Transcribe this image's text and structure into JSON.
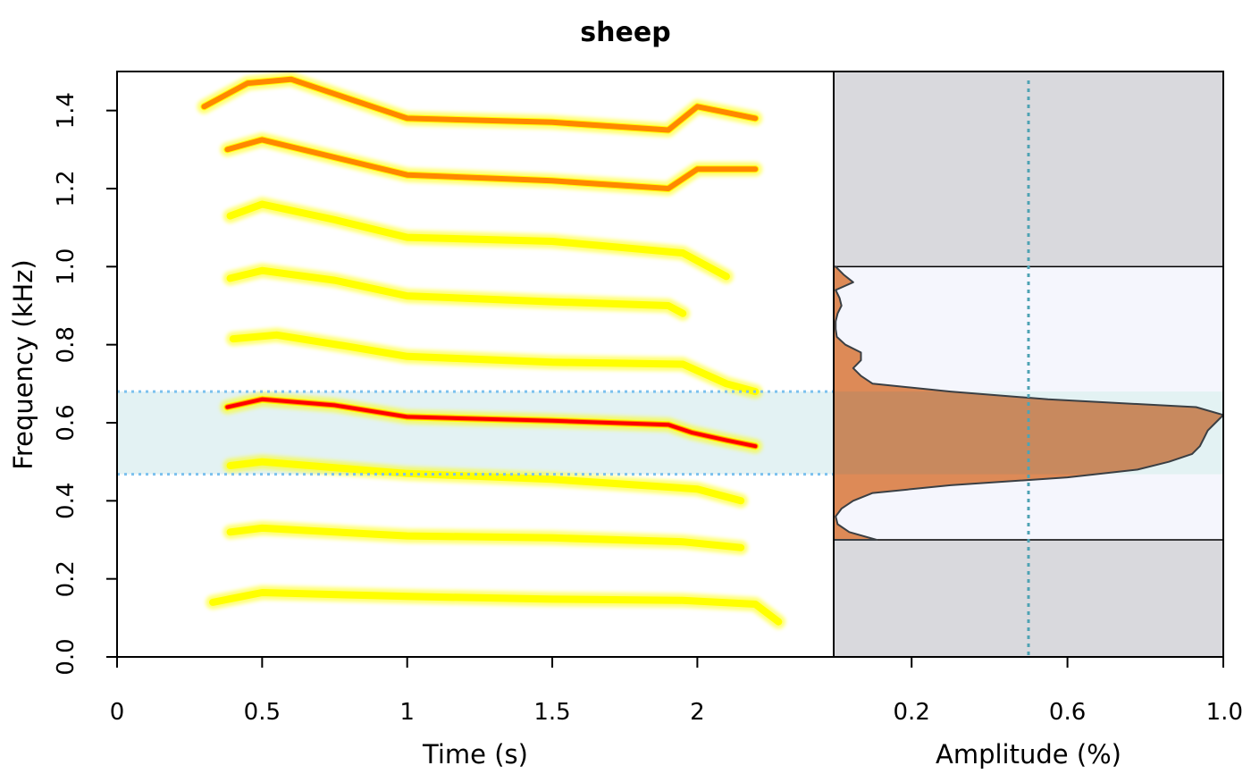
{
  "chart_data": {
    "title": "sheep",
    "type": "heatmap",
    "spectrogram": {
      "xlabel": "Time (s)",
      "ylabel": "Frequency (kHz)",
      "xlim": [
        0,
        2.47
      ],
      "ylim": [
        0,
        1.5
      ],
      "x_ticks": [
        0,
        0.5,
        1,
        1.5,
        2
      ],
      "x_tick_labels": [
        "0",
        "0.5",
        "1",
        "1.5",
        "2"
      ],
      "y_ticks": [
        0,
        0.2,
        0.4,
        0.6,
        0.8,
        1.0,
        1.2,
        1.4
      ],
      "y_tick_labels": [
        "0.0",
        "0.2",
        "0.4",
        "0.6",
        "0.8",
        "1.0",
        "1.2",
        "1.4"
      ],
      "colormap": [
        "#ffffff",
        "#ffff00",
        "#ff8800",
        "#ff0000"
      ],
      "highlight_band_khz": [
        0.468,
        0.68
      ],
      "highlight_band_color": "#e3f2f3",
      "highlight_line_color": "#7cc1ee",
      "harmonics": [
        {
          "name": "h1",
          "intensity": 0.3,
          "points": [
            [
              0.33,
              0.14
            ],
            [
              0.5,
              0.165
            ],
            [
              1.0,
              0.155
            ],
            [
              1.5,
              0.148
            ],
            [
              1.95,
              0.145
            ],
            [
              2.2,
              0.135
            ],
            [
              2.28,
              0.09
            ]
          ]
        },
        {
          "name": "h2",
          "intensity": 0.45,
          "points": [
            [
              0.39,
              0.32
            ],
            [
              0.5,
              0.33
            ],
            [
              1.0,
              0.31
            ],
            [
              1.5,
              0.305
            ],
            [
              1.95,
              0.295
            ],
            [
              2.15,
              0.28
            ]
          ]
        },
        {
          "name": "h3",
          "intensity": 0.5,
          "points": [
            [
              0.39,
              0.49
            ],
            [
              0.5,
              0.5
            ],
            [
              1.0,
              0.47
            ],
            [
              1.5,
              0.455
            ],
            [
              2.0,
              0.43
            ],
            [
              2.15,
              0.4
            ]
          ]
        },
        {
          "name": "h4",
          "intensity": 0.95,
          "points": [
            [
              0.38,
              0.64
            ],
            [
              0.5,
              0.66
            ],
            [
              0.75,
              0.645
            ],
            [
              1.0,
              0.615
            ],
            [
              1.5,
              0.605
            ],
            [
              1.9,
              0.595
            ],
            [
              1.98,
              0.575
            ],
            [
              2.1,
              0.555
            ],
            [
              2.2,
              0.54
            ]
          ]
        },
        {
          "name": "h5",
          "intensity": 0.5,
          "points": [
            [
              0.4,
              0.815
            ],
            [
              0.55,
              0.825
            ],
            [
              0.8,
              0.795
            ],
            [
              1.0,
              0.77
            ],
            [
              1.5,
              0.755
            ],
            [
              1.95,
              0.75
            ],
            [
              2.1,
              0.7
            ],
            [
              2.2,
              0.68
            ]
          ]
        },
        {
          "name": "h6",
          "intensity": 0.45,
          "points": [
            [
              0.39,
              0.97
            ],
            [
              0.5,
              0.99
            ],
            [
              0.75,
              0.965
            ],
            [
              1.0,
              0.925
            ],
            [
              1.5,
              0.91
            ],
            [
              1.9,
              0.9
            ],
            [
              1.95,
              0.88
            ]
          ]
        },
        {
          "name": "h7",
          "intensity": 0.35,
          "points": [
            [
              0.39,
              1.13
            ],
            [
              0.5,
              1.16
            ],
            [
              0.75,
              1.12
            ],
            [
              1.0,
              1.075
            ],
            [
              1.5,
              1.065
            ],
            [
              1.95,
              1.035
            ],
            [
              2.1,
              0.975
            ]
          ]
        },
        {
          "name": "h8",
          "intensity": 0.75,
          "points": [
            [
              0.38,
              1.3
            ],
            [
              0.5,
              1.325
            ],
            [
              0.75,
              1.28
            ],
            [
              1.0,
              1.235
            ],
            [
              1.5,
              1.22
            ],
            [
              1.9,
              1.2
            ],
            [
              2.0,
              1.25
            ],
            [
              2.2,
              1.25
            ]
          ]
        },
        {
          "name": "h9",
          "intensity": 0.8,
          "points": [
            [
              0.3,
              1.41
            ],
            [
              0.45,
              1.47
            ],
            [
              0.6,
              1.48
            ],
            [
              0.8,
              1.43
            ],
            [
              1.0,
              1.38
            ],
            [
              1.5,
              1.37
            ],
            [
              1.9,
              1.35
            ],
            [
              2.0,
              1.41
            ],
            [
              2.2,
              1.38
            ]
          ]
        }
      ]
    },
    "spectrum": {
      "xlabel": "Amplitude (%)",
      "xlim": [
        0,
        1
      ],
      "x_ticks": [
        0.2,
        0.6,
        1.0
      ],
      "x_tick_labels": [
        "0.2",
        "0.6",
        "1.0"
      ],
      "frequency_range_khz": [
        0.3,
        1.0
      ],
      "fill_color": "#dd8a57",
      "band_fill_color": "#c8895e",
      "outline_color": "#3a3f44",
      "range_bg_color": "#f5f6fd",
      "out_of_range_bg_color": "#d9d9dd",
      "threshold_amplitude": 0.5,
      "threshold_color": "#4fa3b4",
      "points": [
        [
          0.3,
          0.11
        ],
        [
          0.32,
          0.04
        ],
        [
          0.34,
          0.01
        ],
        [
          0.36,
          0.005
        ],
        [
          0.38,
          0.02
        ],
        [
          0.4,
          0.05
        ],
        [
          0.42,
          0.1
        ],
        [
          0.44,
          0.3
        ],
        [
          0.46,
          0.6
        ],
        [
          0.48,
          0.78
        ],
        [
          0.5,
          0.86
        ],
        [
          0.52,
          0.92
        ],
        [
          0.54,
          0.94
        ],
        [
          0.56,
          0.95
        ],
        [
          0.58,
          0.96
        ],
        [
          0.6,
          0.98
        ],
        [
          0.62,
          1.0
        ],
        [
          0.64,
          0.93
        ],
        [
          0.66,
          0.55
        ],
        [
          0.68,
          0.3
        ],
        [
          0.7,
          0.1
        ],
        [
          0.72,
          0.07
        ],
        [
          0.74,
          0.05
        ],
        [
          0.76,
          0.07
        ],
        [
          0.78,
          0.07
        ],
        [
          0.8,
          0.03
        ],
        [
          0.82,
          0.008
        ],
        [
          0.84,
          0.005
        ],
        [
          0.86,
          0.005
        ],
        [
          0.88,
          0.01
        ],
        [
          0.9,
          0.02
        ],
        [
          0.92,
          0.015
        ],
        [
          0.94,
          0.005
        ],
        [
          0.96,
          0.05
        ],
        [
          0.98,
          0.025
        ],
        [
          1.0,
          0.005
        ]
      ]
    }
  }
}
